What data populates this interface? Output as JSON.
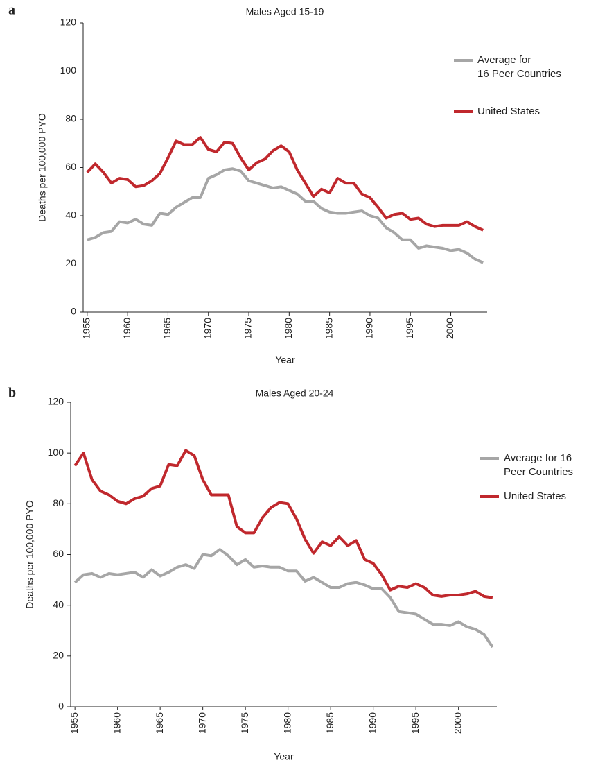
{
  "chart_data": [
    {
      "type": "line",
      "panel": "a",
      "title": "Males Aged 15-19",
      "xlabel": "Year",
      "ylabel": "Deaths per 100,000 PYO",
      "x": [
        1955,
        1956,
        1957,
        1958,
        1959,
        1960,
        1961,
        1962,
        1963,
        1964,
        1965,
        1966,
        1967,
        1968,
        1969,
        1970,
        1971,
        1972,
        1973,
        1974,
        1975,
        1976,
        1977,
        1978,
        1979,
        1980,
        1981,
        1982,
        1983,
        1984,
        1985,
        1986,
        1987,
        1988,
        1989,
        1990,
        1991,
        1992,
        1993,
        1994,
        1995,
        1996,
        1997,
        1998,
        1999,
        2000,
        2001,
        2002,
        2003,
        2004
      ],
      "xlim": [
        1954.5,
        2004.5
      ],
      "xticks": [
        1955,
        1960,
        1965,
        1970,
        1975,
        1980,
        1985,
        1990,
        1995,
        2000
      ],
      "ylim": [
        0,
        120
      ],
      "yticks": [
        0,
        20,
        40,
        60,
        80,
        100,
        120
      ],
      "legend": "right",
      "series": [
        {
          "name": "Average for\n16 Peer Countries",
          "color": "#a6a6a6",
          "values": [
            30,
            31,
            33,
            33.5,
            37.5,
            37,
            38.5,
            36.5,
            36,
            41,
            40.5,
            43.5,
            45.5,
            47.5,
            47.5,
            55.5,
            57,
            59,
            59.5,
            58.5,
            54.5,
            53.5,
            52.5,
            51.5,
            52,
            50.5,
            49,
            46,
            46,
            43,
            41.5,
            41,
            41,
            41.5,
            42,
            40,
            39,
            35,
            33,
            30,
            30,
            26.5,
            27.5,
            27,
            26.5,
            25.5,
            26,
            24.5,
            22,
            20.5
          ]
        },
        {
          "name": "United States",
          "color": "#c0282d",
          "values": [
            58,
            61.5,
            58,
            53.5,
            55.5,
            55,
            52,
            52.5,
            54.5,
            57.5,
            64,
            71,
            69.5,
            69.5,
            72.5,
            67.5,
            66.5,
            70.5,
            70,
            64,
            59,
            62,
            63.5,
            67,
            69,
            66.5,
            59,
            53.5,
            48,
            51,
            49.5,
            55.5,
            53.5,
            53.5,
            49,
            47.5,
            43.5,
            39,
            40.5,
            41,
            38.5,
            39,
            36.5,
            35.5,
            36,
            36,
            36,
            37.5,
            35.5,
            34
          ]
        }
      ]
    },
    {
      "type": "line",
      "panel": "b",
      "title": "Males Aged 20-24",
      "xlabel": "Year",
      "ylabel": "Deaths per 100,000 PYO",
      "x": [
        1955,
        1956,
        1957,
        1958,
        1959,
        1960,
        1961,
        1962,
        1963,
        1964,
        1965,
        1966,
        1967,
        1968,
        1969,
        1970,
        1971,
        1972,
        1973,
        1974,
        1975,
        1976,
        1977,
        1978,
        1979,
        1980,
        1981,
        1982,
        1983,
        1984,
        1985,
        1986,
        1987,
        1988,
        1989,
        1990,
        1991,
        1992,
        1993,
        1994,
        1995,
        1996,
        1997,
        1998,
        1999,
        2000,
        2001,
        2002,
        2003,
        2004
      ],
      "xlim": [
        1954.5,
        2004.5
      ],
      "xticks": [
        1955,
        1960,
        1965,
        1970,
        1975,
        1980,
        1985,
        1990,
        1995,
        2000
      ],
      "ylim": [
        0,
        120
      ],
      "yticks": [
        0,
        20,
        40,
        60,
        80,
        100,
        120
      ],
      "legend": "right",
      "series": [
        {
          "name": "Average for 16\nPeer Countries",
          "color": "#a6a6a6",
          "values": [
            49,
            52,
            52.5,
            51,
            52.5,
            52,
            52.5,
            53,
            51,
            54,
            51.5,
            53,
            55,
            56,
            54.5,
            60,
            59.5,
            62,
            59.5,
            56,
            58,
            55,
            55.5,
            55,
            55,
            53.5,
            53.5,
            49.5,
            51,
            49,
            47,
            47,
            48.5,
            49,
            48,
            46.5,
            46.5,
            43,
            37.5,
            37,
            36.5,
            34.5,
            32.5,
            32.5,
            32,
            33.5,
            31.5,
            30.5,
            28.5,
            23.5
          ]
        },
        {
          "name": "United States",
          "color": "#c0282d",
          "values": [
            95,
            100,
            89.5,
            85,
            83.5,
            81,
            80,
            82,
            83,
            86,
            87,
            95.5,
            95,
            101,
            99,
            89.5,
            83.5,
            83.5,
            83.5,
            71,
            68.5,
            68.5,
            74.5,
            78.5,
            80.5,
            80,
            74,
            66,
            60.5,
            65,
            63.5,
            67,
            63.5,
            65.5,
            58,
            56.5,
            52,
            46,
            47.5,
            47,
            48.5,
            47,
            44,
            43.5,
            44,
            44,
            44.5,
            45.5,
            43.5,
            43
          ]
        }
      ]
    }
  ]
}
